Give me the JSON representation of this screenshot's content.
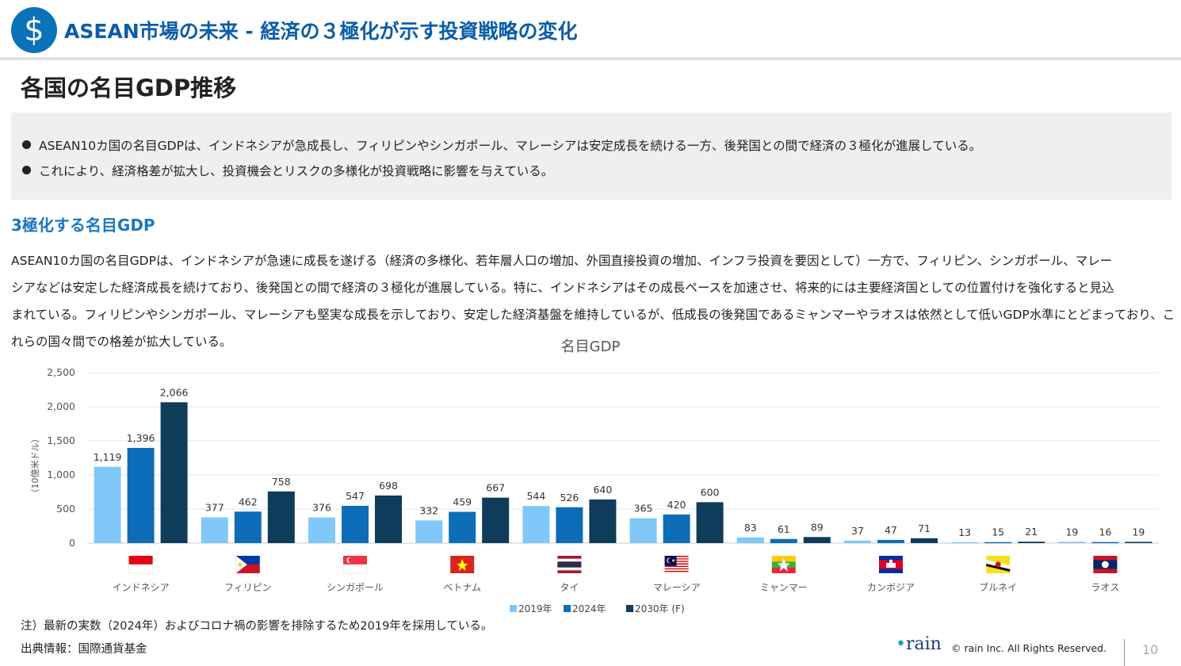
{
  "header": {
    "icon": "dollar-icon",
    "icon_glyph": "$",
    "title": "ASEAN市場の未来 - 経済の３極化が示す投資戦略の変化"
  },
  "section_title": "各国の名目GDP推移",
  "summary": {
    "bullets": [
      "ASEAN10カ国の名目GDPは、インドネシアが急成長し、フィリピンやシンガポール、マレーシアは安定成長を続ける一方、後発国との間で経済の３極化が進展している。",
      "これにより、経済格差が拡大し、投資機会とリスクの多様化が投資戦略に影響を与えている。"
    ]
  },
  "subheading": "3極化する名目GDP",
  "body_lines": [
    "ASEAN10カ国の名目GDPは、インドネシアが急速に成長を遂げる（経済の多様化、若年層人口の増加、外国直接投資の増加、インフラ投資を要因として）一方で、フィリピン、シンガポール、マレー",
    "シアなどは安定した経済成長を続けており、後発国との間で経済の３極化が進展している。特に、インドネシアはその成長ペースを加速させ、将来的には主要経済国としての位置付けを強化すると見込",
    "まれている。フィリピンやシンガポール、マレーシアも堅実な成長を示しており、安定した経済基盤を維持しているが、低成長の後発国であるミャンマーやラオスは依然として低いGDP水準にとどまっており、こ",
    "れらの国々間での格差が拡大している。"
  ],
  "chart_data": {
    "type": "bar",
    "title": "名目GDP",
    "ylabel": "（10億米ドル）",
    "xlabel": "",
    "ylim": [
      0,
      2500
    ],
    "yticks": [
      "0",
      "500",
      "1,000",
      "1,500",
      "2,000",
      "2,500"
    ],
    "grid": true,
    "legend_position": "bottom",
    "categories": [
      "インドネシア",
      "フィリピン",
      "シンガポール",
      "ベトナム",
      "タイ",
      "マレーシア",
      "ミャンマー",
      "カンボジア",
      "ブルネイ",
      "ラオス"
    ],
    "series": [
      {
        "name": "2019年",
        "color": "#7fc8f8",
        "values": [
          1119,
          377,
          376,
          332,
          544,
          365,
          83,
          37,
          13,
          19
        ],
        "labels": [
          "1,119",
          "377",
          "376",
          "332",
          "544",
          "365",
          "83",
          "37",
          "13",
          "19"
        ]
      },
      {
        "name": "2024年",
        "color": "#0e6db8",
        "values": [
          1396,
          462,
          547,
          459,
          526,
          420,
          61,
          47,
          15,
          16
        ],
        "labels": [
          "1,396",
          "462",
          "547",
          "459",
          "526",
          "420",
          "61",
          "47",
          "15",
          "16"
        ]
      },
      {
        "name": "2030年 (F)",
        "color": "#0f3c5a",
        "values": [
          2066,
          758,
          698,
          667,
          640,
          600,
          89,
          71,
          21,
          19
        ],
        "labels": [
          "2,066",
          "758",
          "698",
          "667",
          "640",
          "600",
          "89",
          "71",
          "21",
          "19"
        ]
      }
    ],
    "flags": [
      "indonesia-flag-icon",
      "philippines-flag-icon",
      "singapore-flag-icon",
      "vietnam-flag-icon",
      "thailand-flag-icon",
      "malaysia-flag-icon",
      "myanmar-flag-icon",
      "cambodia-flag-icon",
      "brunei-flag-icon",
      "laos-flag-icon"
    ]
  },
  "footer": {
    "note": "注）最新の実数（2024年）およびコロナ禍の影響を排除するため2019年を採用している。",
    "source": "出典情報：国際通貨基金",
    "logo_text": "rain",
    "copyright": "© rain Inc. All Rights Reserved.",
    "page_number": "10"
  }
}
